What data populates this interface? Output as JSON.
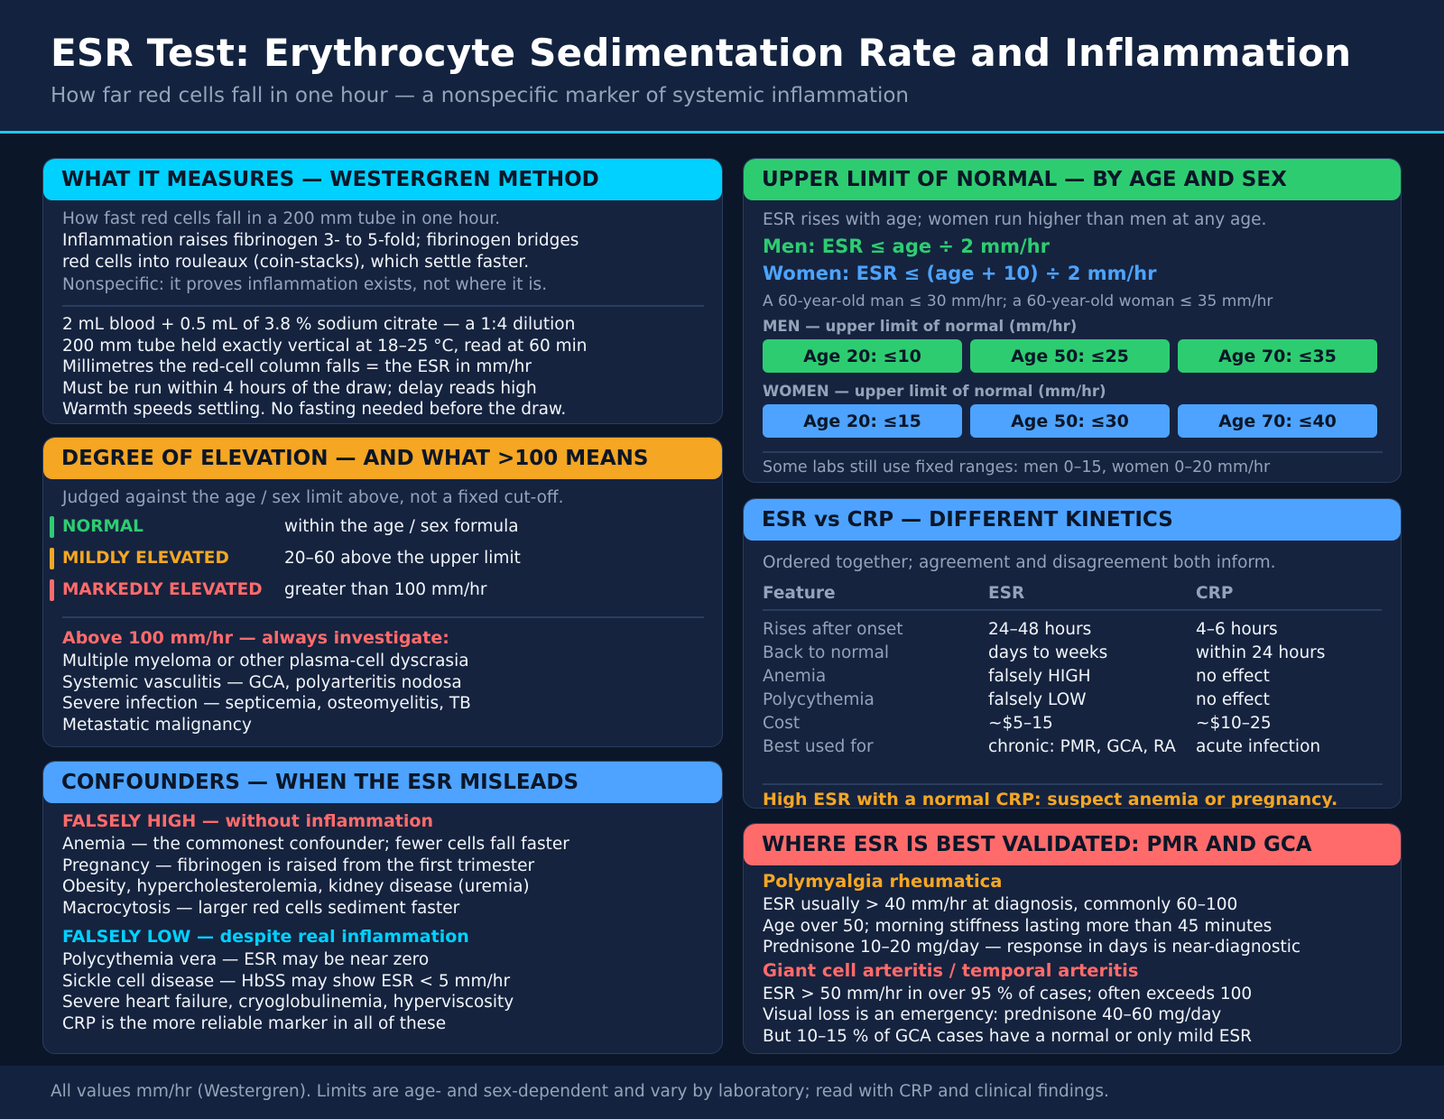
{
  "header": {
    "title": "ESR Test: Erythrocyte Sedimentation Rate and Inflammation",
    "subtitle": "How far red cells fall in one hour — a nonspecific marker of systemic inflammation"
  },
  "measures": {
    "heading": "WHAT IT MEASURES — WESTERGREN METHOD",
    "intro": "How fast red cells fall in a 200 mm tube in one hour.",
    "mechanism": [
      "Inflammation raises fibrinogen 3- to 5-fold; fibrinogen bridges",
      "red cells into rouleaux (coin-stacks), which settle faster."
    ],
    "note": "Nonspecific: it proves inflammation exists, not where it is.",
    "method": [
      "2 mL blood + 0.5 mL of 3.8 % sodium citrate — a 1:4 dilution",
      "200 mm tube held exactly vertical at 18–25 °C, read at 60 min",
      "Millimetres the red-cell column falls = the ESR in mm/hr",
      "Must be run within 4 hours of the draw; delay reads high",
      "Warmth speeds settling. No fasting needed before the draw."
    ]
  },
  "elevation": {
    "heading": "DEGREE OF ELEVATION — AND WHAT >100 MEANS",
    "intro": "Judged against the age / sex limit above, not a fixed cut-off.",
    "levels": [
      {
        "label": "NORMAL",
        "desc": "within the age / sex formula",
        "color": "#2ecc71"
      },
      {
        "label": "MILDLY ELEVATED",
        "desc": "20–60 above the upper limit",
        "color": "#f5a623"
      },
      {
        "label": "MARKEDLY ELEVATED",
        "desc": "greater than 100 mm/hr",
        "color": "#ff6b6b"
      }
    ],
    "above_heading": "Above 100 mm/hr — always investigate:",
    "above_items": [
      "Multiple myeloma or other plasma-cell dyscrasia",
      "Systemic vasculitis — GCA, polyarteritis nodosa",
      "Severe infection — septicemia, osteomyelitis, TB",
      "Metastatic malignancy"
    ]
  },
  "confounders": {
    "heading": "CONFOUNDERS — WHEN THE ESR MISLEADS",
    "high_heading": "FALSELY HIGH — without inflammation",
    "high_items": [
      "Anemia — the commonest confounder; fewer cells fall faster",
      "Pregnancy — fibrinogen is raised from the first trimester",
      "Obesity, hypercholesterolemia, kidney disease (uremia)",
      "Macrocytosis — larger red cells sediment faster"
    ],
    "low_heading": "FALSELY LOW — despite real inflammation",
    "low_items": [
      "Polycythemia vera — ESR may be near zero",
      "Sickle cell disease — HbSS may show ESR < 5 mm/hr",
      "Severe heart failure, cryoglobulinemia, hyperviscosity",
      "CRP is the more reliable marker in all of these"
    ]
  },
  "limits": {
    "heading": "UPPER LIMIT OF NORMAL — BY AGE AND SEX",
    "intro": "ESR rises with age; women run higher than men at any age.",
    "men_formula": "Men: ESR ≤ age ÷ 2 mm/hr",
    "women_formula": "Women: ESR ≤ (age + 10) ÷ 2 mm/hr",
    "example": "A 60-year-old man ≤ 30 mm/hr; a 60-year-old woman ≤ 35 mm/hr",
    "men_label": "MEN — upper limit of normal (mm/hr)",
    "men_pills": [
      "Age 20: ≤10",
      "Age 50: ≤25",
      "Age 70: ≤35"
    ],
    "women_label": "WOMEN — upper limit of normal (mm/hr)",
    "women_pills": [
      "Age 20: ≤15",
      "Age 50: ≤30",
      "Age 70: ≤40"
    ],
    "note": "Some labs still use fixed ranges: men 0–15, women 0–20 mm/hr"
  },
  "crp": {
    "heading": "ESR vs CRP — DIFFERENT KINETICS",
    "intro": "Ordered together; agreement and disagreement both inform.",
    "columns": [
      "Feature",
      "ESR",
      "CRP"
    ],
    "rows": [
      [
        "Rises after onset",
        "24–48 hours",
        "4–6 hours"
      ],
      [
        "Back to normal",
        "days to weeks",
        "within 24 hours"
      ],
      [
        "Anemia",
        "falsely HIGH",
        "no effect"
      ],
      [
        "Polycythemia",
        "falsely LOW",
        "no effect"
      ],
      [
        "Cost",
        "~$5–15",
        "~$10–25"
      ],
      [
        "Best used for",
        "chronic: PMR, GCA, RA",
        "acute infection"
      ]
    ],
    "note": "High ESR with a normal CRP: suspect anemia or pregnancy."
  },
  "validated": {
    "heading": "WHERE ESR IS BEST VALIDATED: PMR AND GCA",
    "pmr_heading": "Polymyalgia rheumatica",
    "pmr_items": [
      "ESR usually > 40 mm/hr at diagnosis, commonly 60–100",
      "Age over 50; morning stiffness lasting more than 45 minutes",
      "Prednisone 10–20 mg/day — response in days is near-diagnostic"
    ],
    "gca_heading": "Giant cell arteritis / temporal arteritis",
    "gca_items": [
      "ESR > 50 mm/hr in over 95 % of cases; often exceeds 100",
      "Visual loss is an emergency: prednisone 40–60 mg/day",
      "But 10–15 % of GCA cases have a normal or only mild ESR"
    ]
  },
  "footer": {
    "text": "All values mm/hr (Westergren). Limits are age- and sex-dependent and vary by laboratory; read with CRP and clinical findings."
  }
}
